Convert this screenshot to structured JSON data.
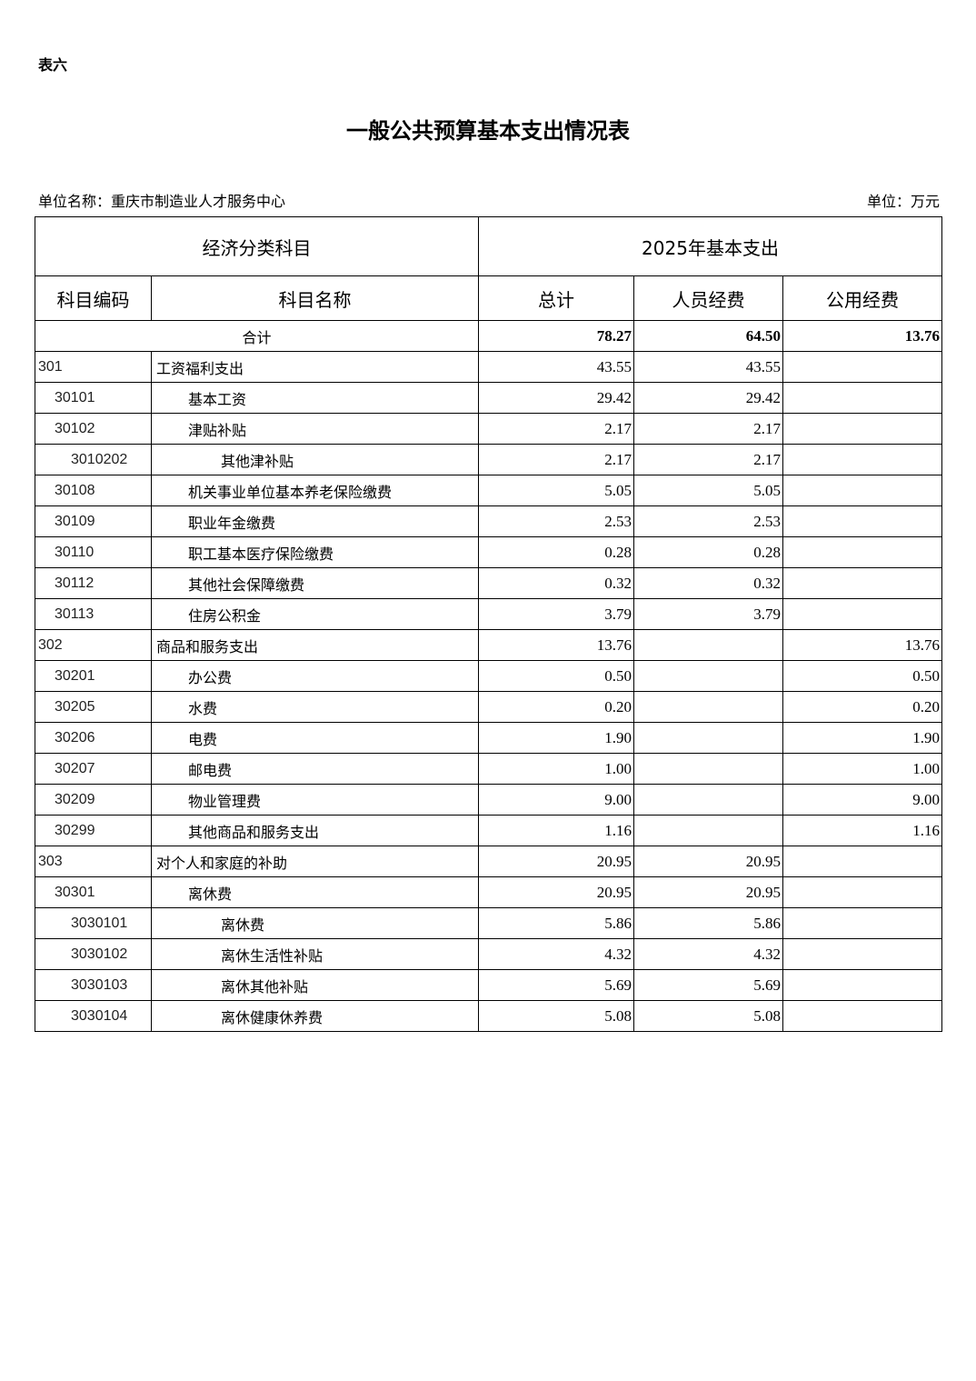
{
  "tag": "表六",
  "title": "一般公共预算基本支出情况表",
  "unit_name": "单位名称：重庆市制造业人才服务中心",
  "unit": "单位：万元",
  "header": {
    "group1": "经济分类科目",
    "group2": "2025年基本支出",
    "code": "科目编码",
    "name": "科目名称",
    "total": "总计",
    "personnel": "人员经费",
    "public": "公用经费"
  },
  "total_row": {
    "label": "合计",
    "total": "78.27",
    "personnel": "64.50",
    "public": "13.76"
  },
  "rows": [
    {
      "level": 0,
      "code": "301",
      "name": "工资福利支出",
      "total": "43.55",
      "personnel": "43.55",
      "public": ""
    },
    {
      "level": 1,
      "code": "30101",
      "name": "基本工资",
      "total": "29.42",
      "personnel": "29.42",
      "public": ""
    },
    {
      "level": 1,
      "code": "30102",
      "name": "津贴补贴",
      "total": "2.17",
      "personnel": "2.17",
      "public": ""
    },
    {
      "level": 2,
      "code": "3010202",
      "name": "其他津补贴",
      "total": "2.17",
      "personnel": "2.17",
      "public": ""
    },
    {
      "level": 1,
      "code": "30108",
      "name": "机关事业单位基本养老保险缴费",
      "total": "5.05",
      "personnel": "5.05",
      "public": ""
    },
    {
      "level": 1,
      "code": "30109",
      "name": "职业年金缴费",
      "total": "2.53",
      "personnel": "2.53",
      "public": ""
    },
    {
      "level": 1,
      "code": "30110",
      "name": "职工基本医疗保险缴费",
      "total": "0.28",
      "personnel": "0.28",
      "public": ""
    },
    {
      "level": 1,
      "code": "30112",
      "name": "其他社会保障缴费",
      "total": "0.32",
      "personnel": "0.32",
      "public": ""
    },
    {
      "level": 1,
      "code": "30113",
      "name": "住房公积金",
      "total": "3.79",
      "personnel": "3.79",
      "public": ""
    },
    {
      "level": 0,
      "code": "302",
      "name": "商品和服务支出",
      "total": "13.76",
      "personnel": "",
      "public": "13.76"
    },
    {
      "level": 1,
      "code": "30201",
      "name": "办公费",
      "total": "0.50",
      "personnel": "",
      "public": "0.50"
    },
    {
      "level": 1,
      "code": "30205",
      "name": "水费",
      "total": "0.20",
      "personnel": "",
      "public": "0.20"
    },
    {
      "level": 1,
      "code": "30206",
      "name": "电费",
      "total": "1.90",
      "personnel": "",
      "public": "1.90"
    },
    {
      "level": 1,
      "code": "30207",
      "name": "邮电费",
      "total": "1.00",
      "personnel": "",
      "public": "1.00"
    },
    {
      "level": 1,
      "code": "30209",
      "name": "物业管理费",
      "total": "9.00",
      "personnel": "",
      "public": "9.00"
    },
    {
      "level": 1,
      "code": "30299",
      "name": "其他商品和服务支出",
      "total": "1.16",
      "personnel": "",
      "public": "1.16"
    },
    {
      "level": 0,
      "code": "303",
      "name": "对个人和家庭的补助",
      "total": "20.95",
      "personnel": "20.95",
      "public": ""
    },
    {
      "level": 1,
      "code": "30301",
      "name": "离休费",
      "total": "20.95",
      "personnel": "20.95",
      "public": ""
    },
    {
      "level": 2,
      "code": "3030101",
      "name": "离休费",
      "total": "5.86",
      "personnel": "5.86",
      "public": ""
    },
    {
      "level": 2,
      "code": "3030102",
      "name": "离休生活性补贴",
      "total": "4.32",
      "personnel": "4.32",
      "public": ""
    },
    {
      "level": 2,
      "code": "3030103",
      "name": "离休其他补贴",
      "total": "5.69",
      "personnel": "5.69",
      "public": ""
    },
    {
      "level": 2,
      "code": "3030104",
      "name": "离休健康休养费",
      "total": "5.08",
      "personnel": "5.08",
      "public": ""
    }
  ]
}
